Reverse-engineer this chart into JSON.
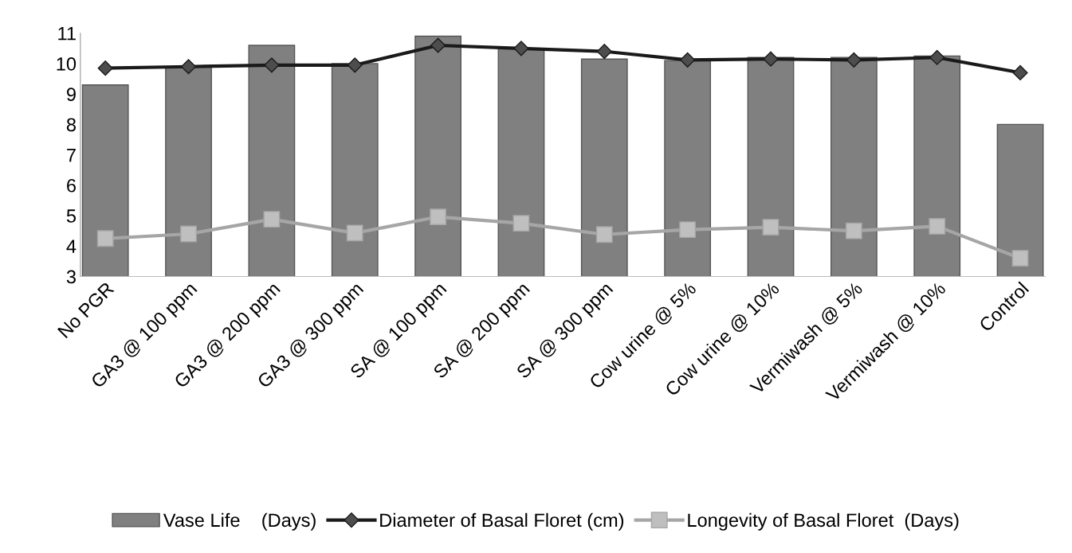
{
  "chart_data": {
    "type": "bar",
    "categories": [
      "No PGR",
      "GA3 @ 100 ppm",
      "GA3 @ 200 ppm",
      "GA3 @ 300 ppm",
      "SA @ 100 ppm",
      "SA @ 200 ppm",
      "SA @ 300 ppm",
      "Cow urine @ 5%",
      "Cow urine @ 10%",
      "Vermiwash @ 5%",
      "Vermiwash @ 10%",
      "Control"
    ],
    "series": [
      {
        "name": "Vase Life    (Days)",
        "color": "#808080",
        "values": [
          9.3,
          9.9,
          10.6,
          10.0,
          10.9,
          10.5,
          10.15,
          10.1,
          10.2,
          10.2,
          10.25,
          8.0
        ]
      },
      {
        "name": "Diameter of Basal Floret (cm)",
        "type": "line",
        "color": "#1a1a1a",
        "marker": "diamond",
        "values": [
          9.85,
          9.9,
          9.95,
          9.95,
          10.6,
          10.5,
          10.4,
          10.12,
          10.15,
          10.12,
          10.2,
          9.7
        ]
      },
      {
        "name": "Longevity of Basal Floret  (Days)",
        "type": "line",
        "color": "#a6a6a6",
        "marker": "square",
        "values": [
          4.25,
          4.4,
          4.88,
          4.43,
          4.96,
          4.75,
          4.38,
          4.54,
          4.62,
          4.5,
          4.65,
          3.6
        ]
      }
    ],
    "ylim": [
      3,
      11
    ],
    "yticks": [
      3,
      4,
      5,
      6,
      7,
      8,
      9,
      10,
      11
    ],
    "grid": false,
    "legend": "bottom"
  }
}
